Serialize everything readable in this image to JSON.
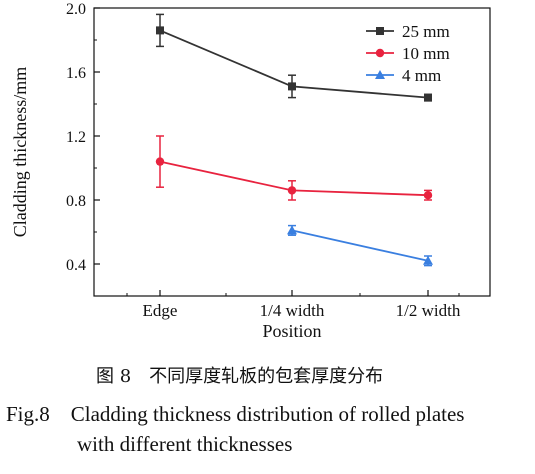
{
  "chart_data": {
    "type": "line",
    "xlabel": "Position",
    "ylabel": "Cladding thickness/mm",
    "categories": [
      "Edge",
      "1/4 width",
      "1/2 width"
    ],
    "ylim": [
      0.2,
      2.0
    ],
    "yticks": [
      0.4,
      0.8,
      1.2,
      1.6,
      2.0
    ],
    "ytick_labels": [
      "0.4",
      "0.8",
      "1.2",
      "1.6",
      "2.0"
    ],
    "legend_position": "top-right",
    "grid": false,
    "series": [
      {
        "name": "25 mm",
        "marker": "square",
        "color": "#333333",
        "x": [
          "Edge",
          "1/4 width",
          "1/2 width"
        ],
        "values": [
          1.86,
          1.51,
          1.44
        ],
        "errors": [
          0.1,
          0.07,
          0.02
        ]
      },
      {
        "name": "10 mm",
        "marker": "circle",
        "color": "#e8233f",
        "x": [
          "Edge",
          "1/4 width",
          "1/2 width"
        ],
        "values": [
          1.04,
          0.86,
          0.83
        ],
        "errors": [
          0.16,
          0.06,
          0.03
        ]
      },
      {
        "name": "4 mm",
        "marker": "triangle",
        "color": "#3a7fe0",
        "x": [
          "1/4 width",
          "1/2 width"
        ],
        "values": [
          0.61,
          0.42
        ],
        "errors": [
          0.03,
          0.03
        ]
      }
    ]
  },
  "caption": {
    "cn": "图 8　不同厚度轧板的包套厚度分布",
    "en_line1": "Fig.8　Cladding thickness distribution of rolled plates",
    "en_line2": "with different thicknesses"
  }
}
